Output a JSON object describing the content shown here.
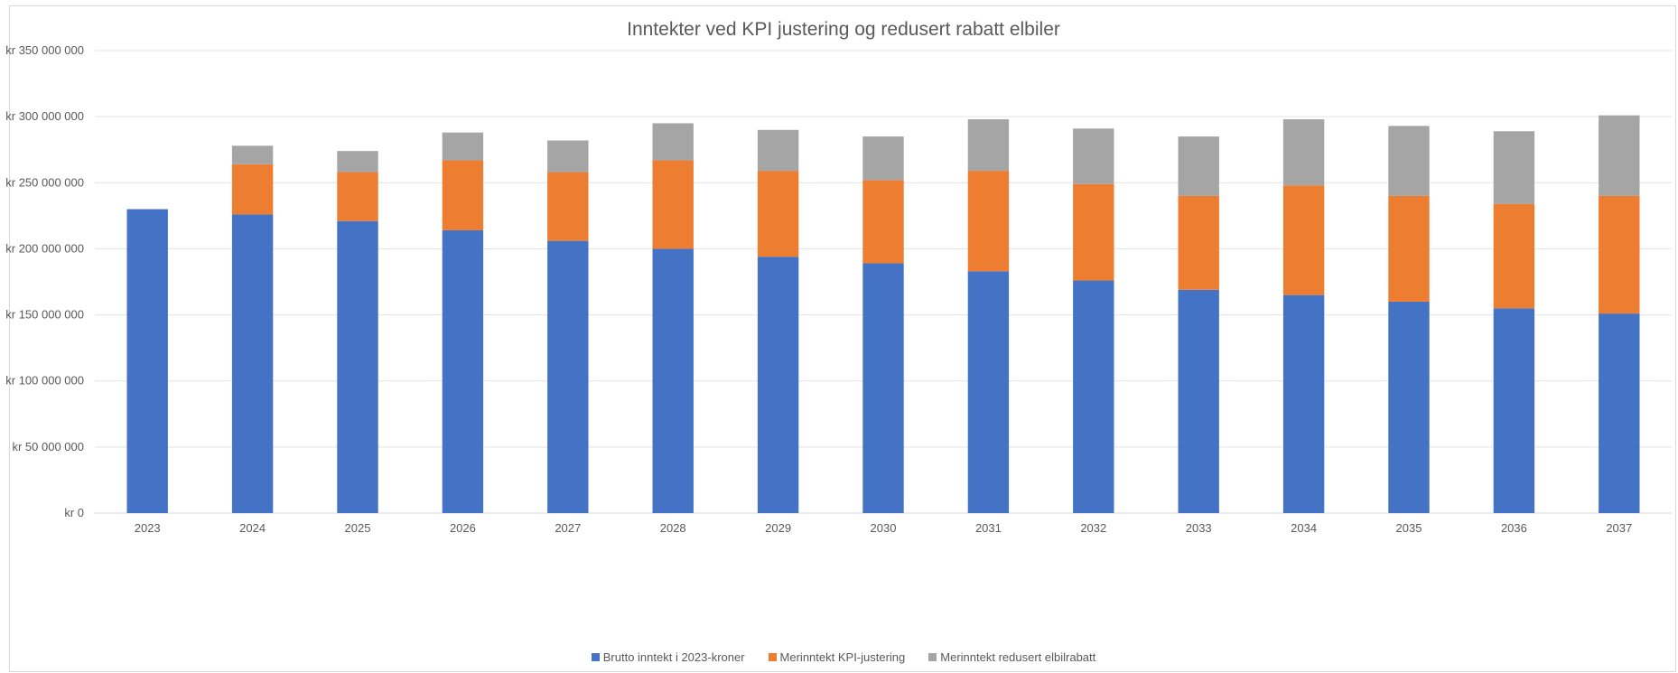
{
  "chart_data": {
    "type": "bar",
    "stacked": true,
    "title": "Inntekter ved KPI justering og redusert rabatt elbiler",
    "xlabel": "",
    "ylabel": "",
    "ylim": [
      0,
      350000000
    ],
    "ytick_step": 50000000,
    "ytick_labels": [
      "kr 0",
      "kr 50 000 000",
      "kr 100 000 000",
      "kr 150 000 000",
      "kr 200 000 000",
      "kr 250 000 000",
      "kr 300 000 000",
      "kr 350 000 000"
    ],
    "grid": true,
    "legend_position": "bottom",
    "categories": [
      "2023",
      "2024",
      "2025",
      "2026",
      "2027",
      "2028",
      "2029",
      "2030",
      "2031",
      "2032",
      "2033",
      "2034",
      "2035",
      "2036",
      "2037"
    ],
    "series": [
      {
        "name": "Brutto inntekt i 2023-kroner",
        "color": "#4472C4",
        "values": [
          230000000,
          226000000,
          221000000,
          214000000,
          206000000,
          200000000,
          194000000,
          189000000,
          183000000,
          176000000,
          169000000,
          165000000,
          160000000,
          155000000,
          151000000
        ]
      },
      {
        "name": "Merinntekt KPI-justering",
        "color": "#ED7D31",
        "values": [
          0,
          38000000,
          37000000,
          53000000,
          52000000,
          67000000,
          65000000,
          63000000,
          76000000,
          73000000,
          71000000,
          83000000,
          80000000,
          79000000,
          89000000
        ]
      },
      {
        "name": "Merinntekt redusert elbilrabatt",
        "color": "#A5A5A5",
        "values": [
          0,
          14000000,
          16000000,
          21000000,
          24000000,
          28000000,
          31000000,
          33000000,
          39000000,
          42000000,
          45000000,
          50000000,
          53000000,
          55000000,
          61000000
        ]
      }
    ]
  }
}
